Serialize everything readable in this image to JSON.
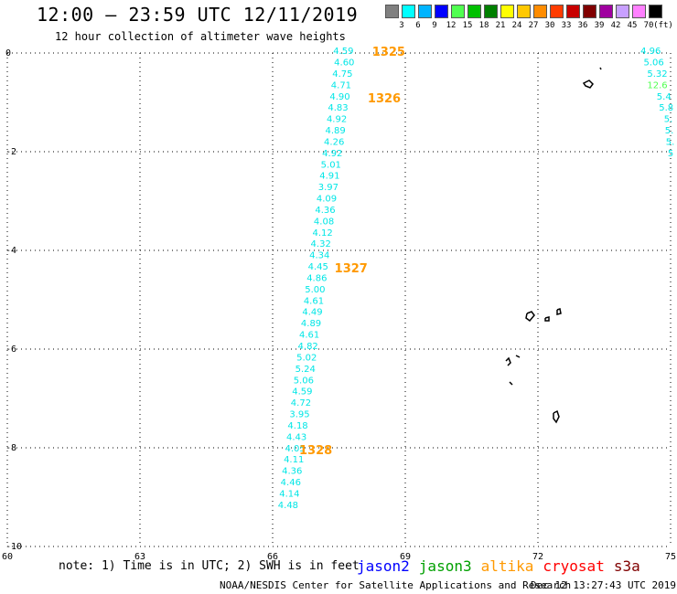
{
  "header": {
    "title": "12:00 – 23:59 UTC 12/11/2019",
    "subtitle": "12 hour collection of altimeter wave heights"
  },
  "color_scale": {
    "labels": [
      "3",
      "6",
      "9",
      "12",
      "15",
      "18",
      "21",
      "24",
      "27",
      "30",
      "33",
      "36",
      "39",
      "42",
      "45",
      "70"
    ],
    "unit": "(ft)",
    "colors": [
      "#808080",
      "#00ffff",
      "#00b4ff",
      "#0000ff",
      "#50ff50",
      "#00c000",
      "#008000",
      "#ffff00",
      "#ffc800",
      "#ff8c00",
      "#ff3c00",
      "#c80000",
      "#800000",
      "#a000a0",
      "#c8a0ff",
      "#ff80ff",
      "#000000"
    ]
  },
  "footer": {
    "note": "note: 1) Time is in UTC; 2) SWH is in feet",
    "credit": "NOAA/NESDIS Center for Satellite Applications and Research",
    "timestamp": "Dec 12 13:27:43 UTC 2019"
  },
  "legend": [
    {
      "name": "jason2",
      "color": "#0000ff"
    },
    {
      "name": "jason3",
      "color": "#00a000"
    },
    {
      "name": "altika",
      "color": "#ff9900"
    },
    {
      "name": "cryosat",
      "color": "#ff0000"
    },
    {
      "name": "s3a",
      "color": "#800000"
    }
  ],
  "chart_data": {
    "type": "scatter",
    "title": "12:00 – 23:59 UTC 12/11/2019",
    "xlim": [
      60,
      75
    ],
    "ylim": [
      -10,
      0
    ],
    "x_ticks": [
      "60",
      "63",
      "66",
      "69",
      "72",
      "75"
    ],
    "y_ticks": [
      "0",
      "-2",
      "-4",
      "-6",
      "-8",
      "-10"
    ],
    "grid": true,
    "series": [
      {
        "name": "altika",
        "color": "#00e6e6",
        "points": [
          {
            "x": 67.6,
            "y": -0.02,
            "v": "4.59"
          },
          {
            "x": 67.62,
            "y": -0.25,
            "v": "4.60"
          },
          {
            "x": 67.58,
            "y": -0.48,
            "v": "4.75"
          },
          {
            "x": 67.55,
            "y": -0.71,
            "v": "4.71"
          },
          {
            "x": 67.52,
            "y": -0.94,
            "v": "4.90"
          },
          {
            "x": 67.48,
            "y": -1.17,
            "v": "4.83"
          },
          {
            "x": 67.45,
            "y": -1.4,
            "v": "4.92"
          },
          {
            "x": 67.42,
            "y": -1.63,
            "v": "4.89"
          },
          {
            "x": 67.39,
            "y": -1.86,
            "v": "4.26"
          },
          {
            "x": 67.35,
            "y": -2.09,
            "v": "4.92"
          },
          {
            "x": 67.32,
            "y": -2.32,
            "v": "5.01"
          },
          {
            "x": 67.29,
            "y": -2.55,
            "v": "4.91"
          },
          {
            "x": 67.26,
            "y": -2.78,
            "v": "3.97"
          },
          {
            "x": 67.22,
            "y": -3.01,
            "v": "4.09"
          },
          {
            "x": 67.19,
            "y": -3.24,
            "v": "4.36"
          },
          {
            "x": 67.16,
            "y": -3.47,
            "v": "4.08"
          },
          {
            "x": 67.13,
            "y": -3.7,
            "v": "4.12"
          },
          {
            "x": 67.09,
            "y": -3.93,
            "v": "4.32"
          },
          {
            "x": 67.06,
            "y": -4.16,
            "v": "4.34"
          },
          {
            "x": 67.03,
            "y": -4.39,
            "v": "4.45"
          },
          {
            "x": 67.0,
            "y": -4.62,
            "v": "4.86"
          },
          {
            "x": 66.96,
            "y": -4.85,
            "v": "5.00"
          },
          {
            "x": 66.93,
            "y": -5.08,
            "v": "4.61"
          },
          {
            "x": 66.9,
            "y": -5.31,
            "v": "4.49"
          },
          {
            "x": 66.87,
            "y": -5.54,
            "v": "4.89"
          },
          {
            "x": 66.83,
            "y": -5.77,
            "v": "4.61"
          },
          {
            "x": 66.8,
            "y": -6.0,
            "v": "4.82"
          },
          {
            "x": 66.77,
            "y": -6.23,
            "v": "5.02"
          },
          {
            "x": 66.74,
            "y": -6.46,
            "v": "5.24"
          },
          {
            "x": 66.7,
            "y": -6.69,
            "v": "5.06"
          },
          {
            "x": 66.67,
            "y": -6.92,
            "v": "4.59"
          },
          {
            "x": 66.64,
            "y": -7.15,
            "v": "4.72"
          },
          {
            "x": 66.61,
            "y": -7.38,
            "v": "3.95"
          },
          {
            "x": 66.57,
            "y": -7.61,
            "v": "4.18"
          },
          {
            "x": 66.54,
            "y": -7.84,
            "v": "4.43"
          },
          {
            "x": 66.51,
            "y": -8.07,
            "v": "4.05"
          },
          {
            "x": 66.48,
            "y": -8.3,
            "v": "4.11"
          },
          {
            "x": 66.44,
            "y": -8.53,
            "v": "4.36"
          },
          {
            "x": 66.41,
            "y": -8.76,
            "v": "4.46"
          },
          {
            "x": 66.38,
            "y": -8.99,
            "v": "4.14"
          },
          {
            "x": 66.35,
            "y": -9.22,
            "v": "4.48"
          }
        ]
      },
      {
        "name": "altika",
        "color": "#00e6e6",
        "points": [
          {
            "x": 74.55,
            "y": -0.02,
            "v": "4.96"
          },
          {
            "x": 74.62,
            "y": -0.25,
            "v": "5.06"
          },
          {
            "x": 74.7,
            "y": -0.48,
            "v": "5.32"
          },
          {
            "x": 74.7,
            "y": -0.71,
            "v": "12.6",
            "color": "#50ff50"
          },
          {
            "x": 74.85,
            "y": -0.94,
            "v": "5.4"
          },
          {
            "x": 74.9,
            "y": -1.17,
            "v": "5.8"
          },
          {
            "x": 74.95,
            "y": -1.4,
            "v": "5."
          },
          {
            "x": 74.97,
            "y": -1.63,
            "v": "5."
          },
          {
            "x": 74.99,
            "y": -1.86,
            "v": "5."
          },
          {
            "x": 75.0,
            "y": -2.09,
            "v": "5"
          }
        ]
      }
    ],
    "time_labels": [
      {
        "x": 68.25,
        "y": 0.0,
        "text": "1325",
        "color": "#ff9900"
      },
      {
        "x": 68.15,
        "y": -0.94,
        "text": "1326",
        "color": "#ff9900"
      },
      {
        "x": 67.4,
        "y": -4.39,
        "text": "1327",
        "color": "#ff9900"
      },
      {
        "x": 66.6,
        "y": -8.07,
        "text": "1328",
        "color": "#ff9900"
      }
    ]
  }
}
